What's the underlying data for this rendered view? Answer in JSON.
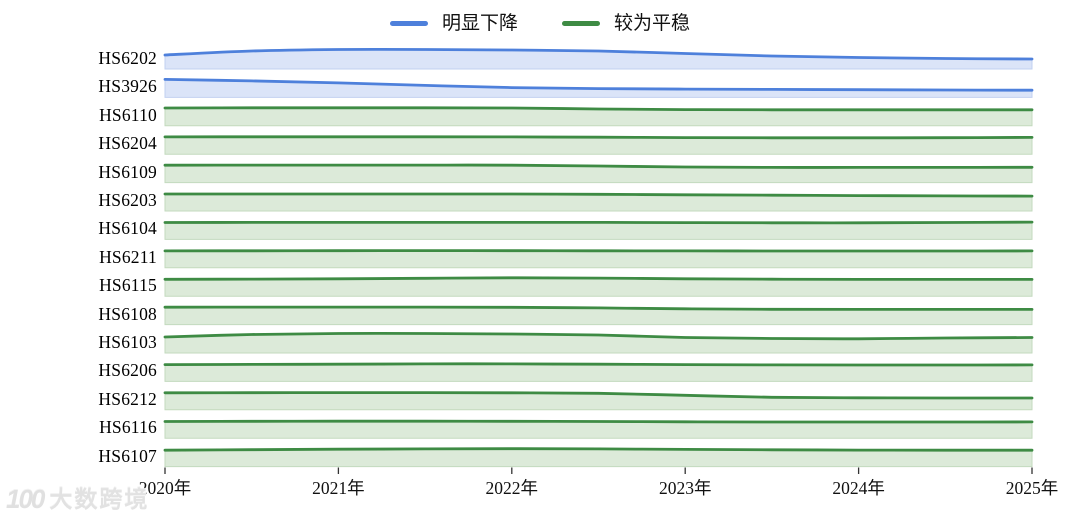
{
  "legend": {
    "items": [
      {
        "label": "明显下降",
        "group": "decline"
      },
      {
        "label": "较为平稳",
        "group": "stable"
      }
    ]
  },
  "watermark": {
    "logo": "100",
    "text": "大数跨境"
  },
  "chart_data": {
    "type": "area",
    "variant": "ridgeline-small-multiples",
    "title": "",
    "xlabel": "",
    "ylabel": "",
    "grid": false,
    "legend_position": "top-center",
    "x": [
      2020,
      2020.5,
      2021,
      2021.5,
      2022,
      2022.5,
      2023,
      2023.5,
      2024,
      2024.5,
      2025
    ],
    "x_ticks": [
      2020,
      2021,
      2022,
      2023,
      2024,
      2025
    ],
    "x_tick_labels": [
      "2020年",
      "2021年",
      "2022年",
      "2023年",
      "2024年",
      "2025年"
    ],
    "value_units": "relative index (band height, 0-20)",
    "groups": {
      "decline": {
        "label": "明显下降",
        "line": "#4e80db",
        "fill": "#dbe4f8",
        "border": "#c2d1f0"
      },
      "stable": {
        "label": "较为平稳",
        "line": "#3e8b44",
        "fill": "#dcead9",
        "border": "#c3dabe"
      }
    },
    "series": [
      {
        "name": "HS6202",
        "group": "decline",
        "values": [
          14,
          18,
          19.5,
          19.5,
          19,
          18,
          15.5,
          13,
          11.5,
          10.5,
          10
        ]
      },
      {
        "name": "HS3926",
        "group": "decline",
        "values": [
          18,
          16.5,
          14.5,
          12,
          9.8,
          8.8,
          8.3,
          8,
          7.7,
          7.4,
          7.2
        ]
      },
      {
        "name": "HS6110",
        "group": "stable",
        "values": [
          17.8,
          18,
          18,
          18,
          17.8,
          16.8,
          16.2,
          16,
          16,
          16,
          16
        ]
      },
      {
        "name": "HS6204",
        "group": "stable",
        "values": [
          17.3,
          17.4,
          17.4,
          17.4,
          17.3,
          17,
          16.6,
          16.4,
          16.4,
          16.5,
          16.8
        ]
      },
      {
        "name": "HS6109",
        "group": "stable",
        "values": [
          17.4,
          17.5,
          17.5,
          17.5,
          17.4,
          16.6,
          15.6,
          15.2,
          15.2,
          15.2,
          15.3
        ]
      },
      {
        "name": "HS6203",
        "group": "stable",
        "values": [
          17,
          17,
          17,
          17,
          17,
          16.7,
          16.2,
          15.8,
          15.4,
          15.1,
          14.9
        ]
      },
      {
        "name": "HS6104",
        "group": "stable",
        "values": [
          16.9,
          17,
          17,
          17,
          17,
          17,
          16.8,
          16.6,
          16.6,
          16.9,
          17.3
        ]
      },
      {
        "name": "HS6211",
        "group": "stable",
        "values": [
          16.9,
          17,
          17.1,
          17.2,
          17.1,
          17,
          16.9,
          16.8,
          16.8,
          16.8,
          16.9
        ]
      },
      {
        "name": "HS6115",
        "group": "stable",
        "values": [
          16.9,
          17.1,
          17.4,
          17.9,
          18.4,
          18.1,
          17.4,
          17,
          16.8,
          16.8,
          16.8
        ]
      },
      {
        "name": "HS6108",
        "group": "stable",
        "values": [
          17.4,
          17.5,
          17.5,
          17.5,
          17.3,
          16.7,
          15.8,
          15.3,
          15.2,
          15.2,
          15.2
        ]
      },
      {
        "name": "HS6103",
        "group": "stable",
        "values": [
          16,
          18.5,
          19.5,
          19.5,
          19,
          18,
          15.5,
          14.5,
          14.2,
          15,
          15.5
        ]
      },
      {
        "name": "HS6206",
        "group": "stable",
        "values": [
          16.8,
          17,
          17.2,
          17.5,
          17.5,
          17.2,
          16.8,
          16.5,
          16.4,
          16.4,
          16.5
        ]
      },
      {
        "name": "HS6212",
        "group": "stable",
        "values": [
          17,
          17.1,
          17.2,
          17.2,
          17,
          16.5,
          14.5,
          12.5,
          12,
          11.8,
          11.8
        ]
      },
      {
        "name": "HS6116",
        "group": "stable",
        "values": [
          16.7,
          16.9,
          17,
          17,
          16.9,
          16.7,
          16.4,
          16.2,
          16.2,
          16.2,
          16.3
        ]
      },
      {
        "name": "HS6107",
        "group": "stable",
        "values": [
          16.4,
          16.9,
          17.4,
          17.7,
          17.9,
          17.7,
          17.2,
          16.8,
          16.5,
          16.4,
          16.4
        ]
      }
    ]
  }
}
